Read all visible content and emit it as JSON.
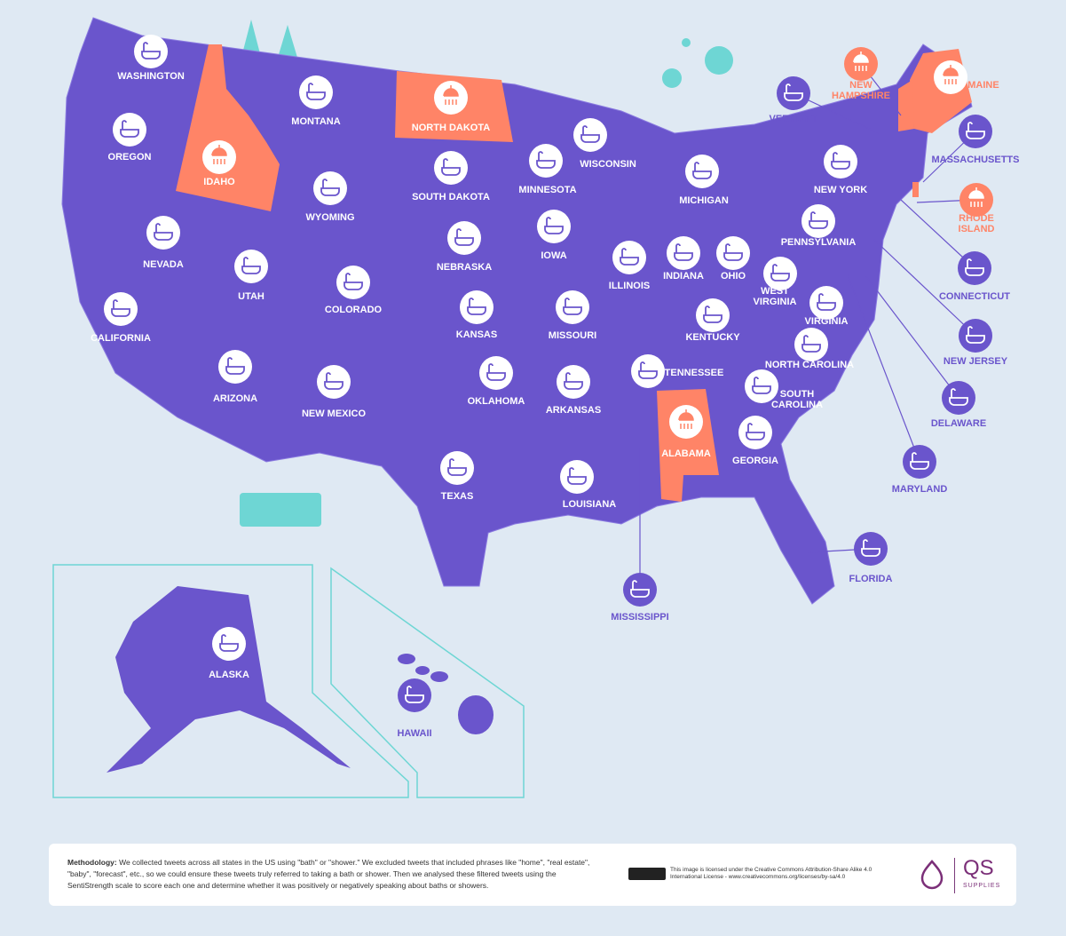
{
  "states": [
    {
      "label": "WASHINGTON",
      "icon": "bath"
    },
    {
      "label": "OREGON",
      "icon": "bath"
    },
    {
      "label": "CALIFORNIA",
      "icon": "bath"
    },
    {
      "label": "NEVADA",
      "icon": "bath"
    },
    {
      "label": "IDAHO",
      "icon": "shower"
    },
    {
      "label": "MONTANA",
      "icon": "bath"
    },
    {
      "label": "WYOMING",
      "icon": "bath"
    },
    {
      "label": "UTAH",
      "icon": "bath"
    },
    {
      "label": "COLORADO",
      "icon": "bath"
    },
    {
      "label": "ARIZONA",
      "icon": "bath"
    },
    {
      "label": "NEW MEXICO",
      "icon": "bath"
    },
    {
      "label": "NORTH DAKOTA",
      "icon": "shower"
    },
    {
      "label": "SOUTH DAKOTA",
      "icon": "bath"
    },
    {
      "label": "NEBRASKA",
      "icon": "bath"
    },
    {
      "label": "KANSAS",
      "icon": "bath"
    },
    {
      "label": "OKLAHOMA",
      "icon": "bath"
    },
    {
      "label": "TEXAS",
      "icon": "bath"
    },
    {
      "label": "MINNESOTA",
      "icon": "bath"
    },
    {
      "label": "IOWA",
      "icon": "bath"
    },
    {
      "label": "MISSOURI",
      "icon": "bath"
    },
    {
      "label": "ARKANSAS",
      "icon": "bath"
    },
    {
      "label": "LOUISIANA",
      "icon": "bath"
    },
    {
      "label": "WISCONSIN",
      "icon": "bath"
    },
    {
      "label": "ILLINOIS",
      "icon": "bath"
    },
    {
      "label": "MICHIGAN",
      "icon": "bath"
    },
    {
      "label": "INDIANA",
      "icon": "bath"
    },
    {
      "label": "OHIO",
      "icon": "bath"
    },
    {
      "label": "KENTUCKY",
      "icon": "bath"
    },
    {
      "label": "TENNESSEE",
      "icon": "bath"
    },
    {
      "label": "MISSISSIPPI",
      "icon": "bath"
    },
    {
      "label": "ALABAMA",
      "icon": "shower"
    },
    {
      "label": "GEORGIA",
      "icon": "bath"
    },
    {
      "label": "FLORIDA",
      "icon": "bath"
    },
    {
      "label": "SOUTH CAROLINA",
      "icon": "bath"
    },
    {
      "label": "NORTH CAROLINA",
      "icon": "bath"
    },
    {
      "label": "VIRGINIA",
      "icon": "bath"
    },
    {
      "label": "WEST VIRGINIA",
      "icon": "bath"
    },
    {
      "label": "PENNSYLVANIA",
      "icon": "bath"
    },
    {
      "label": "NEW YORK",
      "icon": "bath"
    },
    {
      "label": "VERMONT",
      "icon": "bath"
    },
    {
      "label": "NEW HAMPSHIRE",
      "icon": "shower"
    },
    {
      "label": "MAINE",
      "icon": "shower"
    },
    {
      "label": "MASSACHUSETTS",
      "icon": "bath"
    },
    {
      "label": "RHODE ISLAND",
      "icon": "shower"
    },
    {
      "label": "CONNECTICUT",
      "icon": "bath"
    },
    {
      "label": "NEW JERSEY",
      "icon": "bath"
    },
    {
      "label": "DELAWARE",
      "icon": "bath"
    },
    {
      "label": "MARYLAND",
      "icon": "bath"
    },
    {
      "label": "ALASKA",
      "icon": "bath"
    },
    {
      "label": "HAWAII",
      "icon": "bath"
    }
  ],
  "footer": {
    "methodology_heading": "Methodology:",
    "methodology_text": "We collected tweets across all states in the US using \"bath\" or \"shower.\" We excluded tweets that included phrases like \"home\", \"real estate\", \"baby\", \"forecast\", etc., so we could ensure these tweets truly referred to taking a bath or shower. Then we analysed these filtered tweets using the SentiStrength scale to score each one and determine whether it was positively or negatively speaking about baths or showers.",
    "license": "This image is licensed under the Creative Commons Attribution-Share Alike 4.0 International License - www.creativecommons.org/licenses/by-sa/4.0",
    "logo": "QS",
    "logo_sub": "SUPPLIES"
  }
}
